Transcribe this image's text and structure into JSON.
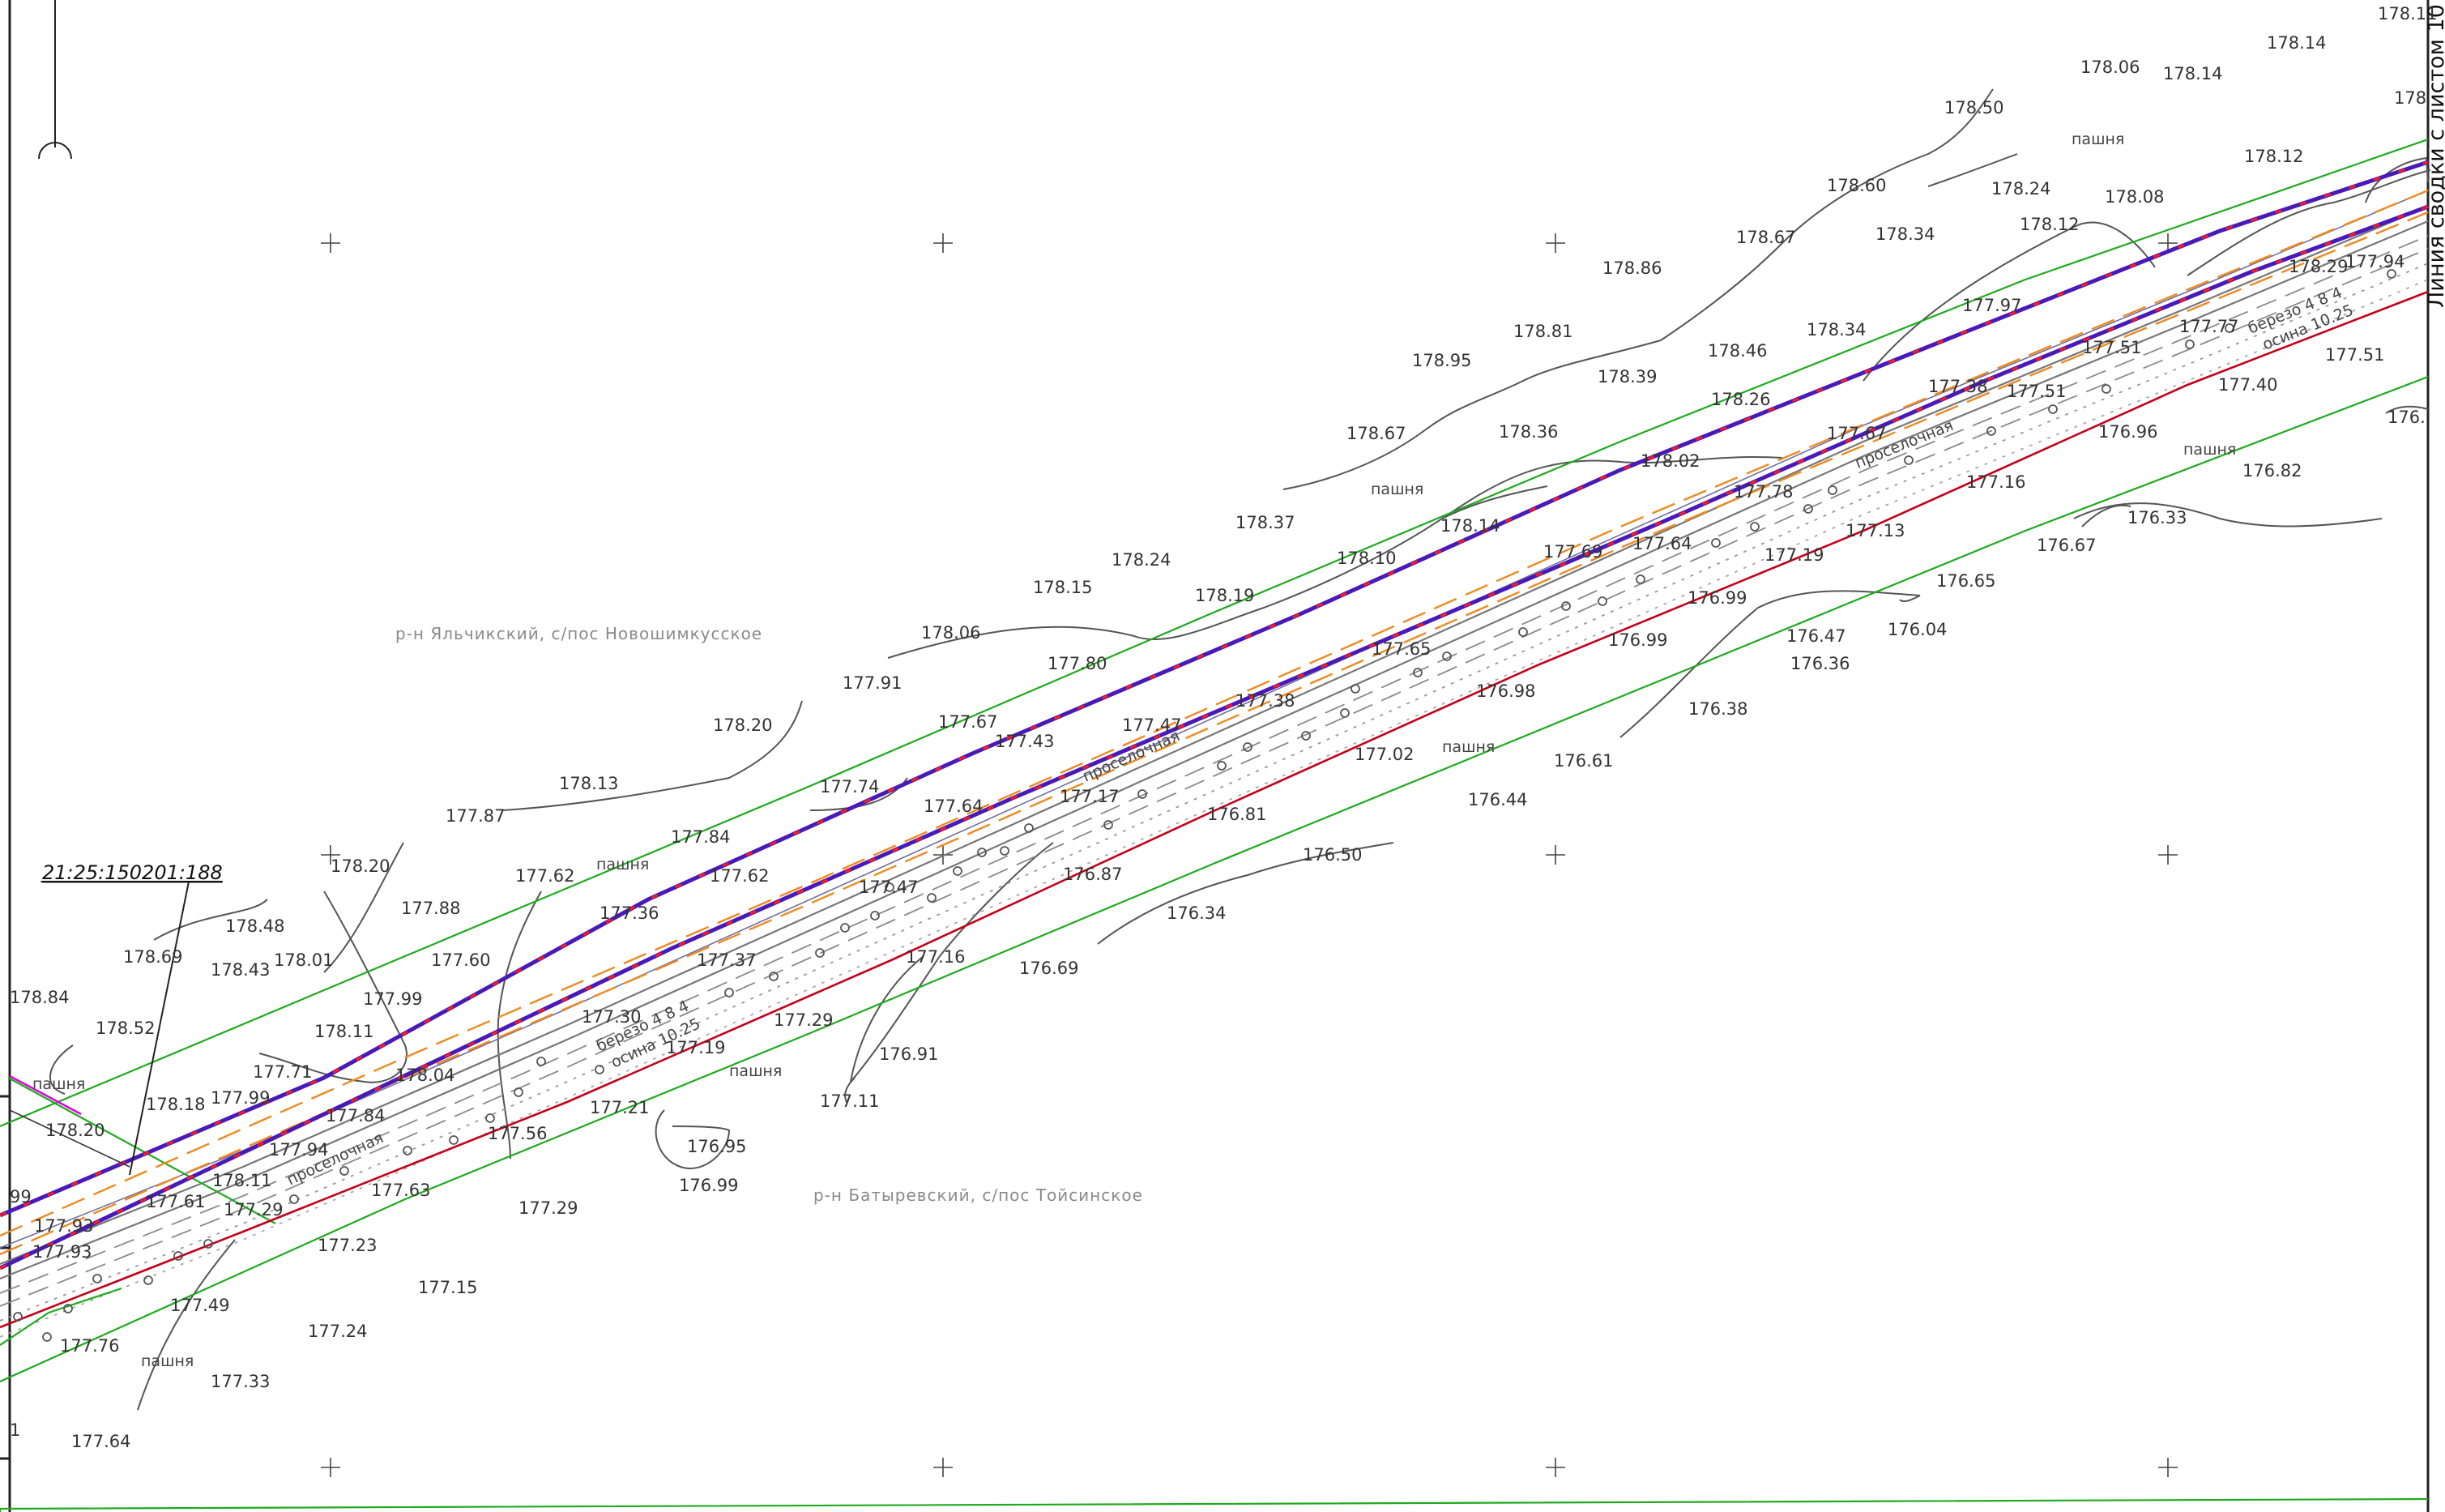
{
  "colors": {
    "boundary_green": "#1faa1f",
    "route_blue": "#4a1ab8",
    "route_red": "#ff1a1a",
    "offset_orange": "#ee8a20",
    "red_line": "#c4001a",
    "contour": "#555555",
    "magenta": "#e000e0"
  },
  "cadastral_number": "21:25:150201:188",
  "match_line_text": "Линия сводки с листом 10",
  "districts": [
    {
      "text": "р-н Яльчикский, с/пос Новошимкусское"
    },
    {
      "text": "р-н Батыревский, с/пос Тойсинское"
    }
  ],
  "road_labels": [
    {
      "text": "проселочная"
    },
    {
      "text": "проселочная"
    },
    {
      "text": "проселочная"
    }
  ],
  "tree_labels": [
    {
      "text": "березо 4 8 4"
    },
    {
      "text": "осина 10.25"
    },
    {
      "text": "березо 4 8 4"
    },
    {
      "text": "осина 10.25"
    }
  ],
  "land_labels": [
    {
      "text": "пашня"
    },
    {
      "text": "пашня"
    },
    {
      "text": "пашня"
    },
    {
      "text": "пашня"
    },
    {
      "text": "пашня"
    },
    {
      "text": "пашня"
    },
    {
      "text": "пашня"
    },
    {
      "text": "пашня"
    }
  ],
  "elevations": [
    {
      "v": "178.11"
    },
    {
      "v": "178.14"
    },
    {
      "v": "178.06"
    },
    {
      "v": "178.14"
    },
    {
      "v": "178.50"
    },
    {
      "v": "178"
    },
    {
      "v": "178.12"
    },
    {
      "v": "178.60"
    },
    {
      "v": "178.24"
    },
    {
      "v": "178.08"
    },
    {
      "v": "178.12"
    },
    {
      "v": "178.67"
    },
    {
      "v": "178.34"
    },
    {
      "v": "178.86"
    },
    {
      "v": "177.97"
    },
    {
      "v": "177.94"
    },
    {
      "v": "178.29"
    },
    {
      "v": "178.81"
    },
    {
      "v": "178.34"
    },
    {
      "v": "178.95"
    },
    {
      "v": "178.46"
    },
    {
      "v": "177.51"
    },
    {
      "v": "177.77"
    },
    {
      "v": "177.51"
    },
    {
      "v": "178.39"
    },
    {
      "v": "178.26"
    },
    {
      "v": "177.38"
    },
    {
      "v": "177.51"
    },
    {
      "v": "177.40"
    },
    {
      "v": "178.67"
    },
    {
      "v": "178.36"
    },
    {
      "v": "176."
    },
    {
      "v": "177.67"
    },
    {
      "v": "176.96"
    },
    {
      "v": "178.02"
    },
    {
      "v": "176.82"
    },
    {
      "v": "177.16"
    },
    {
      "v": "177.78"
    },
    {
      "v": "176.33"
    },
    {
      "v": "178.37"
    },
    {
      "v": "178.14"
    },
    {
      "v": "177.69"
    },
    {
      "v": "177.64"
    },
    {
      "v": "177.13"
    },
    {
      "v": "176.67"
    },
    {
      "v": "178.24"
    },
    {
      "v": "178.10"
    },
    {
      "v": "177.19"
    },
    {
      "v": "178.15"
    },
    {
      "v": "178.19"
    },
    {
      "v": "176.99"
    },
    {
      "v": "176.65"
    },
    {
      "v": "178.06"
    },
    {
      "v": "177.65"
    },
    {
      "v": "176.99"
    },
    {
      "v": "176.47"
    },
    {
      "v": "176.04"
    },
    {
      "v": "177.80"
    },
    {
      "v": "176.36"
    },
    {
      "v": "177.91"
    },
    {
      "v": "177.38"
    },
    {
      "v": "176.98"
    },
    {
      "v": "177.47"
    },
    {
      "v": "176.38"
    },
    {
      "v": "178.20"
    },
    {
      "v": "177.67"
    },
    {
      "v": "177.43"
    },
    {
      "v": "177.02"
    },
    {
      "v": "176.61"
    },
    {
      "v": "178.13"
    },
    {
      "v": "177.74"
    },
    {
      "v": "177.17"
    },
    {
      "v": "176.44"
    },
    {
      "v": "177.87"
    },
    {
      "v": "177.64"
    },
    {
      "v": "176.81"
    },
    {
      "v": "177.84"
    },
    {
      "v": "176.50"
    },
    {
      "v": "178.20"
    },
    {
      "v": "177.62"
    },
    {
      "v": "177.62"
    },
    {
      "v": "177.47"
    },
    {
      "v": "176.87"
    },
    {
      "v": "177.88"
    },
    {
      "v": "177.36"
    },
    {
      "v": "176.34"
    },
    {
      "v": "178.48"
    },
    {
      "v": "178.69"
    },
    {
      "v": "178.43"
    },
    {
      "v": "178.01"
    },
    {
      "v": "177.60"
    },
    {
      "v": "177.37"
    },
    {
      "v": "177.16"
    },
    {
      "v": "176.69"
    },
    {
      "v": "178.84"
    },
    {
      "v": "177.99"
    },
    {
      "v": "177.30"
    },
    {
      "v": "177.29"
    },
    {
      "v": "178.52"
    },
    {
      "v": "178.11"
    },
    {
      "v": "177.19"
    },
    {
      "v": "176.91"
    },
    {
      "v": "177.71"
    },
    {
      "v": "178.04"
    },
    {
      "v": "178.18"
    },
    {
      "v": "177.99"
    },
    {
      "v": "177.11"
    },
    {
      "v": "177.84"
    },
    {
      "v": "177.21"
    },
    {
      "v": "178.20"
    },
    {
      "v": "177.56"
    },
    {
      "v": "176.95"
    },
    {
      "v": "177.94"
    },
    {
      "v": "178.11"
    },
    {
      "v": "176.99"
    },
    {
      "v": "177.61"
    },
    {
      "v": "177.63"
    },
    {
      "v": "177.29"
    },
    {
      "v": "177.29"
    },
    {
      "v": "177.93"
    },
    {
      "v": "177.93"
    },
    {
      "v": "177.23"
    },
    {
      "v": "177.15"
    },
    {
      "v": "177.49"
    },
    {
      "v": "177.24"
    },
    {
      "v": "177.76"
    },
    {
      "v": "177.33"
    },
    {
      "v": "177.64"
    },
    {
      "v": "99"
    },
    {
      "v": "1"
    }
  ]
}
